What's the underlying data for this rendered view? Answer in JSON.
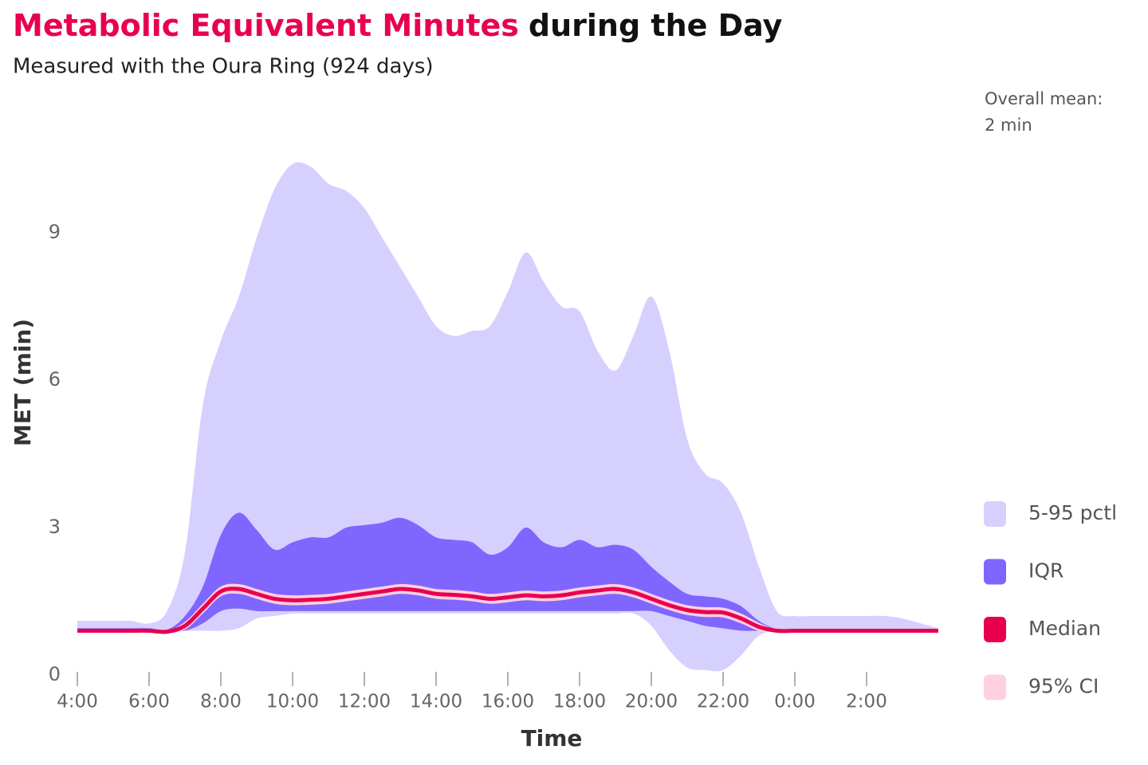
{
  "chart_data": {
    "type": "band",
    "title": {
      "highlight": "Metabolic Equivalent Minutes",
      "rest": "during the Day"
    },
    "subtitle": "Measured with the Oura Ring (924 days)",
    "annotation": [
      "Overall mean:",
      "2 min"
    ],
    "x_label": "Time",
    "y_label": "MET (min)",
    "xlim": [
      4,
      28
    ],
    "ylim": [
      0,
      11.5
    ],
    "xticks": [
      {
        "value": 4,
        "label": "4:00"
      },
      {
        "value": 6,
        "label": "6:00"
      },
      {
        "value": 8,
        "label": "8:00"
      },
      {
        "value": 10,
        "label": "10:00"
      },
      {
        "value": 12,
        "label": "12:00"
      },
      {
        "value": 14,
        "label": "14:00"
      },
      {
        "value": 16,
        "label": "16:00"
      },
      {
        "value": 18,
        "label": "18:00"
      },
      {
        "value": 20,
        "label": "20:00"
      },
      {
        "value": 22,
        "label": "22:00"
      },
      {
        "value": 24,
        "label": "0:00"
      },
      {
        "value": 26,
        "label": "2:00"
      }
    ],
    "yticks": [
      0,
      3,
      6,
      9
    ],
    "x": [
      4,
      4.5,
      5,
      5.5,
      6,
      6.5,
      7,
      7.5,
      8,
      8.5,
      9,
      9.5,
      10,
      10.5,
      11,
      11.5,
      12,
      12.5,
      13,
      13.5,
      14,
      14.5,
      15,
      15.5,
      16,
      16.5,
      17,
      17.5,
      18,
      18.5,
      19,
      19.5,
      20,
      20.5,
      21,
      21.5,
      22,
      22.5,
      23,
      23.5,
      24,
      24.5,
      25,
      25.5,
      26,
      26.5,
      27,
      27.5,
      28
    ],
    "series": [
      {
        "name": "5-95 pctl",
        "color": "#d6d0ff",
        "lower": [
          0.9,
          0.9,
          0.9,
          0.9,
          0.9,
          0.9,
          0.9,
          0.9,
          0.9,
          0.95,
          1.15,
          1.2,
          1.25,
          1.25,
          1.25,
          1.25,
          1.25,
          1.25,
          1.25,
          1.25,
          1.25,
          1.25,
          1.25,
          1.25,
          1.25,
          1.25,
          1.25,
          1.25,
          1.25,
          1.25,
          1.25,
          1.25,
          1.0,
          0.5,
          0.15,
          0.1,
          0.1,
          0.4,
          0.8,
          0.9,
          0.9,
          0.9,
          0.9,
          0.9,
          0.9,
          0.9,
          0.9,
          0.9,
          0.9
        ],
        "upper": [
          1.1,
          1.1,
          1.1,
          1.1,
          1.05,
          1.3,
          2.5,
          5.5,
          6.8,
          7.7,
          8.9,
          9.9,
          10.4,
          10.35,
          10.0,
          9.85,
          9.5,
          8.9,
          8.3,
          7.7,
          7.1,
          6.9,
          7.0,
          7.1,
          7.8,
          8.6,
          8.0,
          7.5,
          7.4,
          6.6,
          6.2,
          6.9,
          7.7,
          6.6,
          4.8,
          4.1,
          3.9,
          3.3,
          2.2,
          1.3,
          1.2,
          1.2,
          1.2,
          1.2,
          1.2,
          1.2,
          1.15,
          1.05,
          0.95
        ]
      },
      {
        "name": "IQR",
        "color": "#7f66ff",
        "lower": [
          0.9,
          0.9,
          0.9,
          0.9,
          0.9,
          0.9,
          0.9,
          1.05,
          1.3,
          1.35,
          1.3,
          1.3,
          1.3,
          1.3,
          1.3,
          1.3,
          1.3,
          1.3,
          1.3,
          1.3,
          1.3,
          1.3,
          1.3,
          1.3,
          1.3,
          1.3,
          1.3,
          1.3,
          1.3,
          1.3,
          1.3,
          1.3,
          1.3,
          1.2,
          1.1,
          1.0,
          0.95,
          0.9,
          0.9,
          0.9,
          0.9,
          0.9,
          0.9,
          0.9,
          0.9,
          0.9,
          0.9,
          0.9,
          0.9
        ],
        "upper": [
          0.95,
          0.95,
          0.95,
          0.95,
          0.95,
          0.92,
          1.2,
          1.8,
          2.85,
          3.3,
          2.95,
          2.55,
          2.7,
          2.8,
          2.8,
          3.0,
          3.05,
          3.1,
          3.2,
          3.05,
          2.8,
          2.75,
          2.7,
          2.45,
          2.6,
          3.0,
          2.7,
          2.6,
          2.75,
          2.6,
          2.65,
          2.55,
          2.2,
          1.9,
          1.65,
          1.6,
          1.55,
          1.4,
          1.1,
          0.93,
          0.93,
          0.93,
          0.93,
          0.93,
          0.93,
          0.93,
          0.93,
          0.93,
          0.93
        ]
      },
      {
        "name": "Median",
        "color": "#e8004f",
        "values": [
          0.9,
          0.9,
          0.9,
          0.9,
          0.9,
          0.88,
          1.0,
          1.35,
          1.7,
          1.75,
          1.65,
          1.55,
          1.52,
          1.53,
          1.55,
          1.6,
          1.65,
          1.7,
          1.75,
          1.72,
          1.65,
          1.63,
          1.6,
          1.55,
          1.58,
          1.62,
          1.6,
          1.62,
          1.68,
          1.72,
          1.75,
          1.68,
          1.55,
          1.42,
          1.32,
          1.28,
          1.27,
          1.15,
          0.98,
          0.9,
          0.9,
          0.9,
          0.9,
          0.9,
          0.9,
          0.9,
          0.9,
          0.9,
          0.9
        ]
      },
      {
        "name": "95% CI",
        "color": "#ffd0e0",
        "lower": [
          0.88,
          0.88,
          0.88,
          0.88,
          0.88,
          0.86,
          0.92,
          1.25,
          1.6,
          1.65,
          1.55,
          1.45,
          1.42,
          1.43,
          1.45,
          1.5,
          1.55,
          1.6,
          1.65,
          1.62,
          1.55,
          1.53,
          1.5,
          1.45,
          1.48,
          1.52,
          1.5,
          1.52,
          1.58,
          1.62,
          1.65,
          1.58,
          1.45,
          1.32,
          1.22,
          1.18,
          1.17,
          1.05,
          0.9,
          0.88,
          0.88,
          0.88,
          0.88,
          0.88,
          0.88,
          0.88,
          0.88,
          0.88,
          0.88
        ],
        "upper": [
          0.92,
          0.92,
          0.92,
          0.92,
          0.92,
          0.9,
          1.08,
          1.45,
          1.8,
          1.85,
          1.75,
          1.65,
          1.62,
          1.63,
          1.65,
          1.7,
          1.75,
          1.8,
          1.85,
          1.82,
          1.75,
          1.73,
          1.7,
          1.65,
          1.68,
          1.72,
          1.7,
          1.72,
          1.78,
          1.82,
          1.85,
          1.78,
          1.65,
          1.52,
          1.42,
          1.38,
          1.37,
          1.25,
          1.06,
          0.92,
          0.92,
          0.92,
          0.92,
          0.92,
          0.92,
          0.92,
          0.92,
          0.92,
          0.92
        ]
      }
    ]
  }
}
